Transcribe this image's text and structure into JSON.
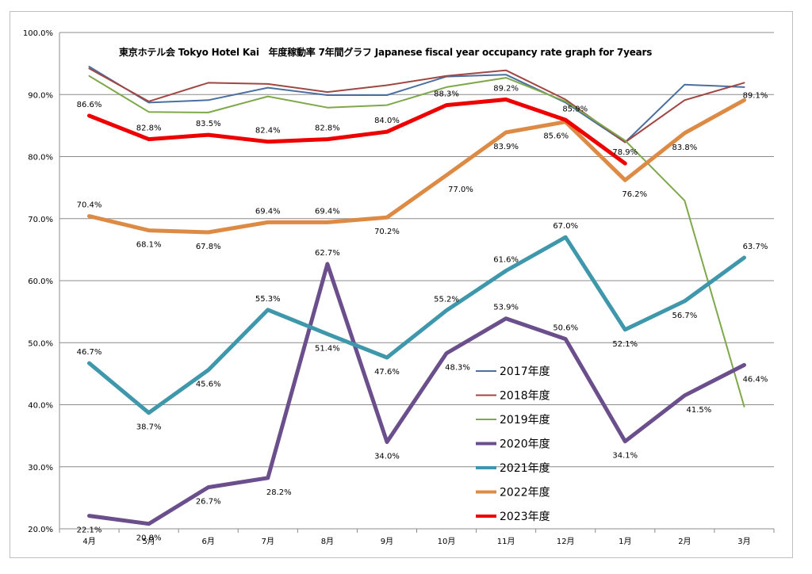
{
  "chart_data": {
    "type": "line",
    "title": "東京ホテル会 Tokyo Hotel Kai　年度稼動率 7年間グラフ Japanese fiscal year occupancy rate graph for 7years",
    "xlabel": "",
    "ylabel": "",
    "categories": [
      "4月",
      "5月",
      "6月",
      "7月",
      "8月",
      "9月",
      "10月",
      "11月",
      "12月",
      "1月",
      "2月",
      "3月"
    ],
    "ylim": [
      20,
      100
    ],
    "yticks": [
      "20.0%",
      "30.0%",
      "40.0%",
      "50.0%",
      "60.0%",
      "70.0%",
      "80.0%",
      "90.0%",
      "100.0%"
    ],
    "grid": true,
    "legend_position": "center-right",
    "series": [
      {
        "name": "2017年度",
        "color": "#4a6fa0",
        "width": 2,
        "values": [
          94.5,
          88.7,
          89.1,
          91.1,
          89.9,
          89.9,
          92.9,
          93.2,
          88.7,
          82.3,
          91.6,
          91.2
        ],
        "labels": null
      },
      {
        "name": "2018年度",
        "color": "#a04743",
        "width": 2,
        "values": [
          94.2,
          88.9,
          91.9,
          91.7,
          90.4,
          91.5,
          93.0,
          93.9,
          89.2,
          82.3,
          89.1,
          91.9
        ],
        "labels": null
      },
      {
        "name": "2019年度",
        "color": "#7ea84a",
        "width": 2,
        "values": [
          93.0,
          87.2,
          87.1,
          89.7,
          87.9,
          88.3,
          91.2,
          92.7,
          88.9,
          82.6,
          72.9,
          39.7
        ],
        "labels": null
      },
      {
        "name": "2020年度",
        "color": "#6b4f8c",
        "width": 5,
        "values": [
          22.1,
          20.8,
          26.7,
          28.2,
          62.7,
          34.0,
          48.3,
          53.9,
          50.6,
          34.1,
          41.5,
          46.4
        ],
        "labels": [
          "22.1%",
          "20.8%",
          "26.7%",
          "28.2%",
          "62.7%",
          "34.0%",
          "48.3%",
          "53.9%",
          "50.6%",
          "34.1%",
          "41.5%",
          "46.4%"
        ]
      },
      {
        "name": "2021年度",
        "color": "#3e97ab",
        "width": 5,
        "values": [
          46.7,
          38.7,
          45.6,
          55.3,
          51.4,
          47.6,
          55.2,
          61.6,
          67.0,
          52.1,
          56.7,
          63.7
        ],
        "labels": [
          "46.7%",
          "38.7%",
          "45.6%",
          "55.3%",
          "51.4%",
          "47.6%",
          "55.2%",
          "61.6%",
          "67.0%",
          "52.1%",
          "56.7%",
          "63.7%"
        ]
      },
      {
        "name": "2022年度",
        "color": "#dd8a45",
        "width": 5,
        "values": [
          70.4,
          68.1,
          67.8,
          69.4,
          69.4,
          70.2,
          77.0,
          83.9,
          85.6,
          76.2,
          83.8,
          89.1
        ],
        "labels": [
          "70.4%",
          "68.1%",
          "67.8%",
          "69.4%",
          "69.4%",
          "70.2%",
          "77.0%",
          "83.9%",
          "85.6%",
          "76.2%",
          "83.8%",
          "89.1%"
        ]
      },
      {
        "name": "2023年度",
        "color": "#ee0000",
        "width": 5,
        "values": [
          86.6,
          82.8,
          83.5,
          82.4,
          82.8,
          84.0,
          88.3,
          89.2,
          85.9,
          78.9,
          null,
          null
        ],
        "labels": [
          "86.6%",
          "82.8%",
          "83.5%",
          "82.4%",
          "82.8%",
          "84.0%",
          "88.3%",
          "89.2%",
          "85.9%",
          "78.9%",
          null,
          null
        ]
      }
    ]
  }
}
